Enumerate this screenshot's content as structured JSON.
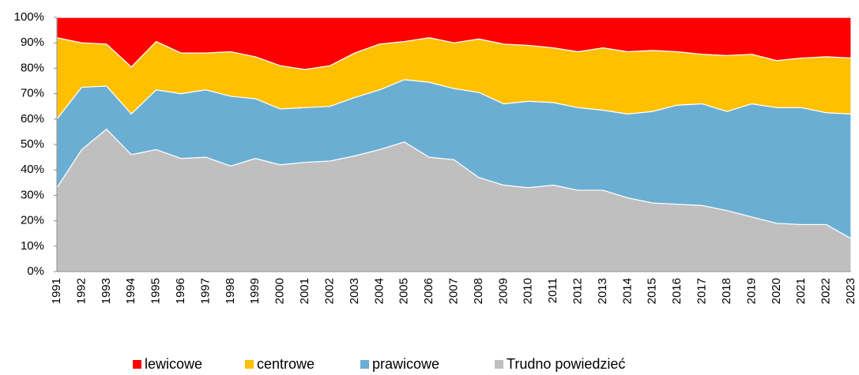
{
  "chart_data": {
    "type": "stacked_area",
    "categories": [
      "1991",
      "1992",
      "1993",
      "1994",
      "1995",
      "1996",
      "1997",
      "1998",
      "1999",
      "2000",
      "2001",
      "2002",
      "2003",
      "2004",
      "2005",
      "2006",
      "2007",
      "2008",
      "2009",
      "2010",
      "2011",
      "2012",
      "2013",
      "2014",
      "2015",
      "2016",
      "2017",
      "2018",
      "2019",
      "2020",
      "2021",
      "2022",
      "2023"
    ],
    "series": [
      {
        "name": "lewicowe",
        "color": "#ff0000",
        "values": [
          8,
          10,
          10.5,
          19.5,
          9.5,
          14,
          14,
          13.5,
          15.5,
          19,
          20.5,
          19,
          14,
          10.5,
          9.5,
          8,
          10,
          8.5,
          10.5,
          11,
          12,
          13.5,
          12,
          13.5,
          13,
          13.5,
          14.5,
          15,
          14.5,
          17,
          16,
          15.5,
          16
        ]
      },
      {
        "name": "centrowe",
        "color": "#ffc000",
        "values": [
          32,
          17.5,
          16.5,
          18.5,
          19,
          16,
          14.5,
          17.5,
          16.5,
          17,
          15,
          16,
          17.5,
          18,
          15,
          17.5,
          18,
          21,
          23.5,
          22,
          21.5,
          22,
          24.5,
          24.5,
          24,
          21,
          19.5,
          22,
          19.5,
          18.5,
          19.5,
          22,
          22
        ]
      },
      {
        "name": "prawicowe",
        "color": "#6baed3",
        "values": [
          27,
          24.5,
          17,
          16,
          23.5,
          25.5,
          26.5,
          27.5,
          23.5,
          22,
          21.5,
          21.5,
          23,
          23.5,
          24.5,
          29.5,
          28,
          33.5,
          32,
          34,
          32.5,
          32.5,
          31.5,
          33,
          36,
          39,
          40,
          39,
          44.5,
          45.5,
          46,
          44,
          49
        ]
      },
      {
        "name": "Trudno powiedzieć",
        "color": "#bfbfbf",
        "values": [
          33,
          48,
          56,
          46,
          48,
          44.5,
          45,
          41.5,
          44.5,
          42,
          43,
          43.5,
          45.5,
          48,
          51,
          45,
          44,
          37,
          34,
          33,
          34,
          32,
          32,
          29,
          27,
          26.5,
          26,
          24,
          21.5,
          19,
          18.5,
          18.5,
          13
        ]
      }
    ],
    "ylim": [
      0,
      100
    ],
    "yticks": [
      {
        "value": 0,
        "label": "0%"
      },
      {
        "value": 10,
        "label": "10%"
      },
      {
        "value": 20,
        "label": "20%"
      },
      {
        "value": 30,
        "label": "30%"
      },
      {
        "value": 40,
        "label": "40%"
      },
      {
        "value": 50,
        "label": "50%"
      },
      {
        "value": 60,
        "label": "60%"
      },
      {
        "value": 70,
        "label": "70%"
      },
      {
        "value": 80,
        "label": "80%"
      },
      {
        "value": 90,
        "label": "90%"
      },
      {
        "value": 100,
        "label": "100%"
      }
    ],
    "grid": false,
    "legend": "bottom"
  }
}
